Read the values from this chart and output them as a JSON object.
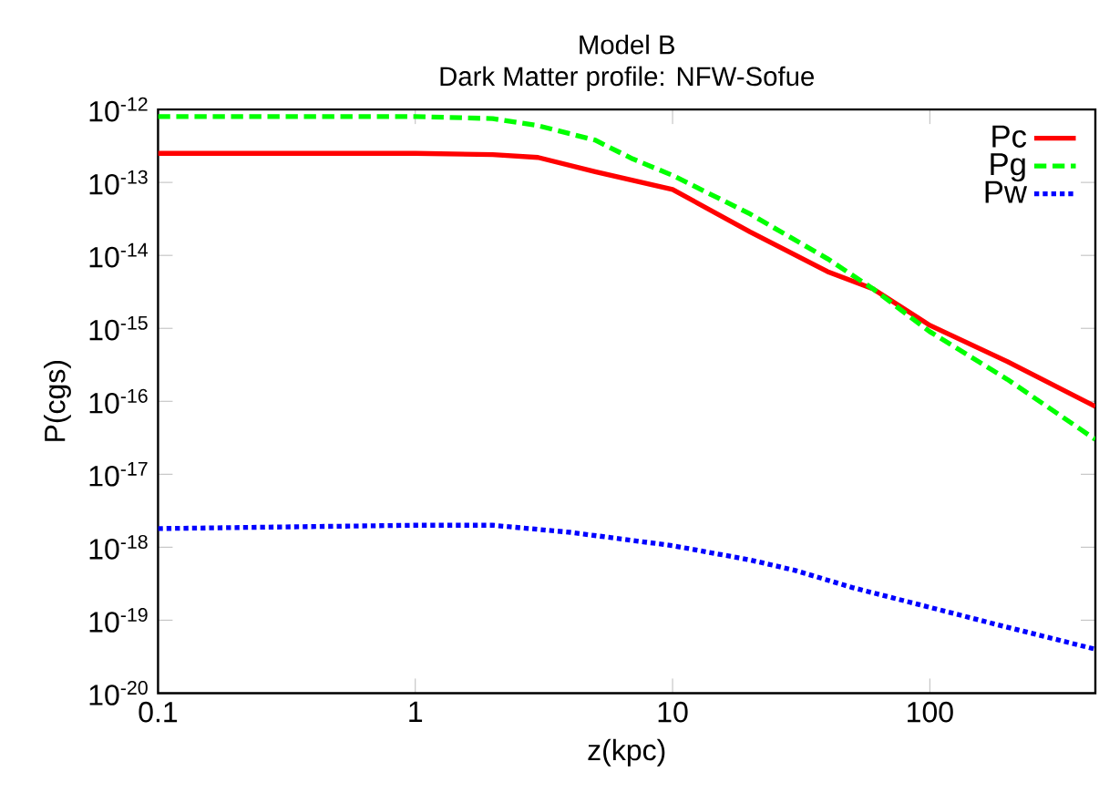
{
  "chart_data": {
    "type": "line",
    "title": "Model B",
    "subtitle": "Dark Matter profile: NFW-Sofue",
    "xlabel": "z(kpc)",
    "ylabel": "P(cgs)",
    "log": "xy",
    "grid": false,
    "legend": "top right",
    "marker": "none",
    "xlim": [
      0.1,
      440
    ],
    "ylim": [
      1e-20,
      1e-12
    ],
    "xticks": [
      0.1,
      1,
      10,
      100
    ],
    "yticks": [
      {
        "value": 1e-20,
        "label": "10$^{-20}$"
      },
      {
        "value": 1e-19,
        "label": "10$^{-19}$"
      },
      {
        "value": 1e-18,
        "label": "10$^{-18}$"
      },
      {
        "value": 1e-17,
        "label": "10$^{-17}$"
      },
      {
        "value": 1e-16,
        "label": "10$^{-16}$"
      },
      {
        "value": 1e-15,
        "label": "10$^{-15}$"
      },
      {
        "value": 1e-14,
        "label": "10$^{-14}$"
      },
      {
        "value": 1e-13,
        "label": "10$^{-13}$"
      },
      {
        "value": 1e-12,
        "label": "10$^{-12}$"
      }
    ],
    "series": [
      {
        "name": "Pc",
        "color": "#ff0000",
        "line_style": "solid",
        "x": [
          0.1,
          1,
          2,
          3,
          5,
          10,
          20,
          40,
          60,
          100,
          200,
          440
        ],
        "values": [
          2.5e-13,
          2.5e-13,
          2.4e-13,
          2.2e-13,
          1.4e-13,
          8e-14,
          2.1e-14,
          6e-15,
          3.5e-15,
          1.1e-15,
          3.5e-16,
          8.5e-17
        ]
      },
      {
        "name": "Pg",
        "color": "#00ff00",
        "line_style": "dashed",
        "x": [
          0.1,
          1,
          2,
          3,
          5,
          7,
          10,
          20,
          40,
          60,
          100,
          200,
          440
        ],
        "values": [
          8e-13,
          8e-13,
          7.5e-13,
          6e-13,
          3.8e-13,
          2.1e-13,
          1.25e-13,
          3.7e-14,
          9e-15,
          3.5e-15,
          9e-16,
          2e-16,
          3e-17
        ]
      },
      {
        "name": "Pw",
        "color": "#0000ff",
        "line_style": "dotted",
        "x": [
          0.1,
          1,
          2,
          4,
          10,
          20,
          30,
          50,
          100,
          200,
          440
        ],
        "values": [
          1.8e-18,
          2e-18,
          2e-18,
          1.6e-18,
          1.05e-18,
          6.7e-19,
          4.8e-19,
          2.8e-19,
          1.5e-19,
          8e-20,
          4e-20
        ]
      }
    ]
  }
}
